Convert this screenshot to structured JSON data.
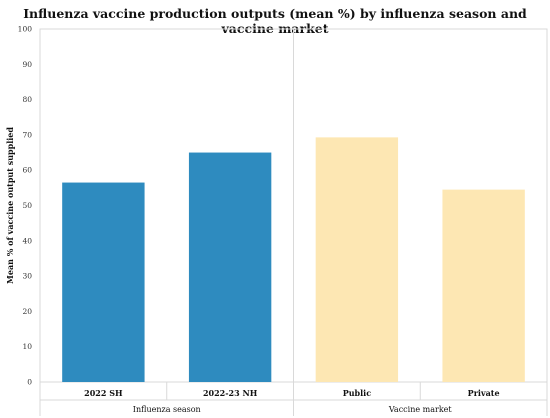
{
  "chart_data": {
    "type": "bar",
    "title": "Influenza vaccine production outputs (mean %) by influenza season and vaccine market",
    "ylabel": "Mean % of vaccine output supplied",
    "ylim": [
      0,
      100
    ],
    "yticks": [
      0,
      10,
      20,
      30,
      40,
      50,
      60,
      70,
      80,
      90,
      100
    ],
    "grid": false,
    "groups": [
      {
        "name": "Influenza season",
        "color": "#2e8bbf",
        "categories": [
          "2022 SH",
          "2022-23 NH"
        ],
        "values": [
          56.5,
          65.0
        ]
      },
      {
        "name": "Vaccine market",
        "color": "#fde7b3",
        "categories": [
          "Public",
          "Private"
        ],
        "values": [
          69.3,
          54.5
        ]
      }
    ]
  }
}
